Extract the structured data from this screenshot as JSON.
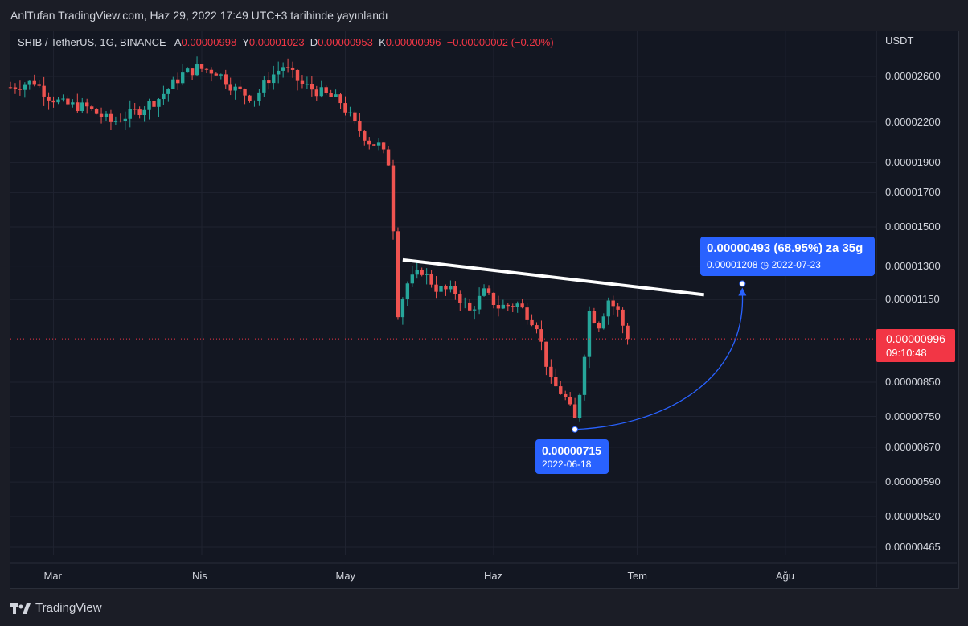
{
  "header": {
    "title": "AnlTufan TradingView.com, Haz 29, 2022 17:49 UTC+3 tarihinde yayınlandı"
  },
  "legend": {
    "symbol": "SHIB / TetherUS, 1G, BINANCE",
    "open_label": "A",
    "open": "0.00000998",
    "high_label": "Y",
    "high": "0.00001023",
    "low_label": "D",
    "low": "0.00000953",
    "close_label": "K",
    "close": "0.00000996",
    "change": "−0.00000002 (−0.20%)"
  },
  "axis": {
    "unit": "USDT"
  },
  "price_tag": {
    "price": "0.00000996",
    "countdown": "09:10:48"
  },
  "callouts": {
    "target": {
      "line1": "0.00000493 (68.95%) za 35g",
      "value": "0.00001208",
      "date": "2022-07-23"
    },
    "low": {
      "value": "0.00000715",
      "date": "2022-06-18"
    }
  },
  "footer": {
    "brand": "TradingView"
  },
  "colors": {
    "up": "#26a69a",
    "down": "#ef5350",
    "accent": "#2962ff",
    "bg": "#131722"
  },
  "chart_data": {
    "type": "candlestick",
    "symbol": "SHIB / TetherUS",
    "interval": "1G",
    "y_scale": "log",
    "x_range": [
      "2022-02-20",
      "2022-08-20"
    ],
    "y_ticks": [
      "0.00002600",
      "0.00002200",
      "0.00001900",
      "0.00001700",
      "0.00001500",
      "0.00001300",
      "0.00001150",
      "0.00000850",
      "0.00000750",
      "0.00000670",
      "0.00000590",
      "0.00000520",
      "0.00000465"
    ],
    "x_ticks": [
      {
        "label": "Mar",
        "date": "2022-03-01"
      },
      {
        "label": "Nis",
        "date": "2022-04-01"
      },
      {
        "label": "May",
        "date": "2022-05-01"
      },
      {
        "label": "Haz",
        "date": "2022-06-01"
      },
      {
        "label": "Tem",
        "date": "2022-07-01"
      },
      {
        "label": "Ağu",
        "date": "2022-08-01"
      }
    ],
    "close_path": [
      [
        "2022-02-20",
        2.5e-05
      ],
      [
        "2022-02-25",
        2.55e-05
      ],
      [
        "2022-02-28",
        2.42e-05
      ],
      [
        "2022-03-03",
        2.35e-05
      ],
      [
        "2022-03-08",
        2.32e-05
      ],
      [
        "2022-03-13",
        2.2e-05
      ],
      [
        "2022-03-18",
        2.28e-05
      ],
      [
        "2022-03-23",
        2.4e-05
      ],
      [
        "2022-03-28",
        2.62e-05
      ],
      [
        "2022-03-31",
        2.68e-05
      ],
      [
        "2022-04-04",
        2.65e-05
      ],
      [
        "2022-04-08",
        2.48e-05
      ],
      [
        "2022-04-12",
        2.4e-05
      ],
      [
        "2022-04-15",
        2.58e-05
      ],
      [
        "2022-04-18",
        2.7e-05
      ],
      [
        "2022-04-22",
        2.52e-05
      ],
      [
        "2022-04-26",
        2.45e-05
      ],
      [
        "2022-04-30",
        2.37e-05
      ],
      [
        "2022-05-03",
        2.18e-05
      ],
      [
        "2022-05-06",
        2.05e-05
      ],
      [
        "2022-05-08",
        2.02e-05
      ],
      [
        "2022-05-10",
        1.9e-05
      ],
      [
        "2022-05-11",
        1.5e-05
      ],
      [
        "2022-05-12",
        1.1e-05
      ],
      [
        "2022-05-14",
        1.22e-05
      ],
      [
        "2022-05-17",
        1.28e-05
      ],
      [
        "2022-05-20",
        1.2e-05
      ],
      [
        "2022-05-24",
        1.18e-05
      ],
      [
        "2022-05-27",
        1.1e-05
      ],
      [
        "2022-05-30",
        1.18e-05
      ],
      [
        "2022-06-02",
        1.12e-05
      ],
      [
        "2022-06-06",
        1.13e-05
      ],
      [
        "2022-06-10",
        1.05e-05
      ],
      [
        "2022-06-13",
        8.5e-06
      ],
      [
        "2022-06-15",
        8.2e-06
      ],
      [
        "2022-06-16",
        8e-06
      ],
      [
        "2022-06-18",
        7.4e-06
      ],
      [
        "2022-06-19",
        8.2e-06
      ],
      [
        "2022-06-21",
        1.1e-05
      ],
      [
        "2022-06-23",
        1.05e-05
      ],
      [
        "2022-06-25",
        1.15e-05
      ],
      [
        "2022-06-27",
        1.1e-05
      ],
      [
        "2022-06-29",
        9.96e-06
      ]
    ],
    "trendline": [
      [
        "2022-05-13",
        1.33e-05
      ],
      [
        "2022-07-15",
        1.17e-05
      ]
    ],
    "projection": {
      "from": {
        "date": "2022-06-18",
        "price": 7.15e-06
      },
      "to": {
        "date": "2022-07-23",
        "price": 1.208e-05
      },
      "change": "0.00000493 (68.95%)"
    },
    "last_price": 9.96e-06
  }
}
